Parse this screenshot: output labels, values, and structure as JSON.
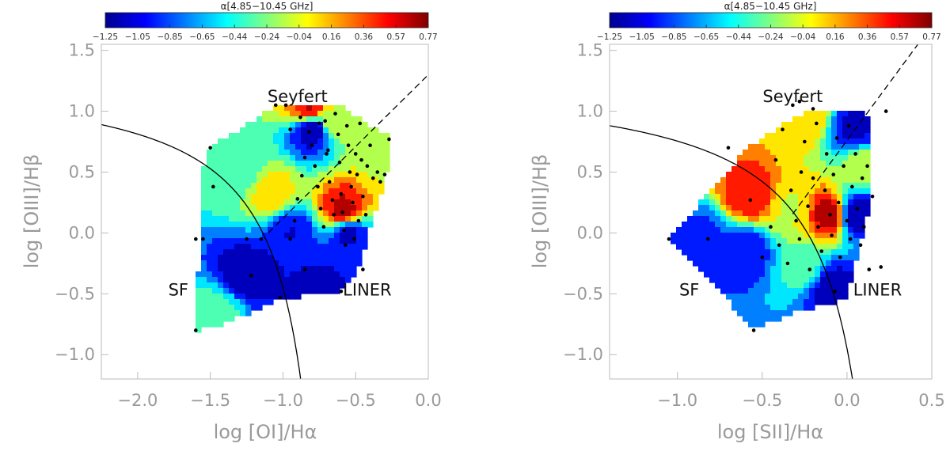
{
  "colorbar": {
    "title": "α[4.85−10.45 GHz]",
    "ticks": [
      "−1.25",
      "−1.05",
      "−0.85",
      "−0.65",
      "−0.44",
      "−0.24",
      "−0.04",
      "0.16",
      "0.36",
      "0.57",
      "0.77"
    ],
    "range": [
      -1.25,
      0.77
    ],
    "colormap": [
      "#00008f",
      "#0000ff",
      "#0080ff",
      "#00ffff",
      "#80ff80",
      "#ffff00",
      "#ff8000",
      "#ff0000",
      "#800000"
    ]
  },
  "chart_data": [
    {
      "type": "scatter",
      "title": "",
      "xlabel": "log [OI]/Hα",
      "ylabel": "log [OIII]/Hβ",
      "xlim": [
        -2.25,
        0.0
      ],
      "ylim": [
        -1.2,
        1.55
      ],
      "xticks": [
        -2.0,
        -1.5,
        -1.0,
        -0.5,
        0.0
      ],
      "xticklabels": [
        "−2.0",
        "−1.5",
        "−1.0",
        "−0.5",
        "0.0"
      ],
      "yticks": [
        1.5,
        1.0,
        0.5,
        0.0,
        -0.5,
        -1.0
      ],
      "yticklabels": [
        "1.5",
        "1.0",
        "0.5",
        "0.0",
        "−0.5",
        "−1.0"
      ],
      "regions": [
        {
          "label": "Seyfert",
          "x": -0.9,
          "y": 1.12
        },
        {
          "label": "SF",
          "x": -1.72,
          "y": -0.47
        },
        {
          "label": "LINER",
          "x": -0.42,
          "y": -0.47
        }
      ],
      "hulls": [
        [
          -1.6,
          -0.8
        ],
        [
          -1.55,
          0.55
        ],
        [
          -1.5,
          0.7
        ],
        [
          -1.05,
          1.05
        ],
        [
          -0.62,
          1.05
        ],
        [
          -0.25,
          0.78
        ],
        [
          -0.3,
          0.42
        ],
        [
          -0.5,
          -0.35
        ],
        [
          -0.6,
          -0.48
        ],
        [
          -1.05,
          -0.55
        ],
        [
          -1.4,
          -0.75
        ]
      ],
      "hot_spots": [
        {
          "x": -0.82,
          "y": 1.02,
          "v": 0.6
        },
        {
          "x": -0.58,
          "y": 0.18,
          "v": 0.65
        },
        {
          "x": -1.08,
          "y": 0.32,
          "v": 0.1
        },
        {
          "x": -0.65,
          "y": 0.92,
          "v": -0.05
        },
        {
          "x": -0.35,
          "y": 0.65,
          "v": -0.05
        },
        {
          "x": -1.3,
          "y": 0.5,
          "v": -0.4
        },
        {
          "x": -1.45,
          "y": -0.65,
          "v": -0.35
        }
      ],
      "cold_spots": [
        {
          "x": -0.8,
          "y": 0.85,
          "v": -1.25
        },
        {
          "x": -1.25,
          "y": -0.35,
          "v": -1.2
        },
        {
          "x": -0.55,
          "y": 0.0,
          "v": -1.1
        },
        {
          "x": -0.95,
          "y": 0.0,
          "v": -1.05
        },
        {
          "x": -0.75,
          "y": -0.45,
          "v": -1.1
        }
      ],
      "points": [
        [
          -1.6,
          -0.05
        ],
        [
          -1.55,
          -0.05
        ],
        [
          -1.6,
          -0.8
        ],
        [
          -1.5,
          0.7
        ],
        [
          -1.48,
          0.38
        ],
        [
          -1.25,
          -0.05
        ],
        [
          -1.22,
          -0.35
        ],
        [
          -1.05,
          1.05
        ],
        [
          -0.98,
          1.05
        ],
        [
          -1.02,
          -0.53
        ],
        [
          -0.95,
          -0.05
        ],
        [
          -0.92,
          0.1
        ],
        [
          -0.9,
          0.28
        ],
        [
          -0.87,
          0.47
        ],
        [
          -0.85,
          0.62
        ],
        [
          -0.82,
          0.83
        ],
        [
          -0.8,
          0.72
        ],
        [
          -0.78,
          0.55
        ],
        [
          -0.76,
          0.38
        ],
        [
          -0.74,
          0.2
        ],
        [
          -0.72,
          0.05
        ],
        [
          -0.71,
          0.92
        ],
        [
          -0.69,
          0.68
        ],
        [
          -0.68,
          0.42
        ],
        [
          -0.66,
          0.27
        ],
        [
          -0.65,
          0.15
        ],
        [
          -0.64,
          0.98
        ],
        [
          -0.62,
          0.81
        ],
        [
          -0.61,
          0.58
        ],
        [
          -0.6,
          0.32
        ],
        [
          -0.59,
          0.17
        ],
        [
          -0.58,
          0.02
        ],
        [
          -0.57,
          -0.1
        ],
        [
          -0.56,
          0.88
        ],
        [
          -0.55,
          0.72
        ],
        [
          -0.54,
          0.5
        ],
        [
          -0.53,
          0.38
        ],
        [
          -0.52,
          0.25
        ],
        [
          -0.51,
          -0.05
        ],
        [
          -0.5,
          0.65
        ],
        [
          -0.49,
          0.48
        ],
        [
          -0.48,
          0.1
        ],
        [
          -0.47,
          0.9
        ],
        [
          -0.46,
          0.6
        ],
        [
          -0.45,
          0.3
        ],
        [
          -0.43,
          0.15
        ],
        [
          -0.42,
          0.55
        ],
        [
          -0.4,
          0.72
        ],
        [
          -0.38,
          0.45
        ],
        [
          -0.35,
          0.5
        ],
        [
          -0.33,
          0.42
        ],
        [
          -0.3,
          0.48
        ],
        [
          -0.27,
          0.77
        ],
        [
          -0.45,
          -0.3
        ],
        [
          -0.6,
          -0.48
        ],
        [
          -0.85,
          -0.3
        ],
        [
          -0.7,
          0.65
        ],
        [
          -0.75,
          0.9
        ],
        [
          -0.95,
          0.85
        ],
        [
          -0.88,
          0.95
        ],
        [
          -1.15,
          -0.05
        ]
      ],
      "demarcation": {
        "sf_curve": "log([OIII]/Hβ) = 0.73/(log([OI]/Hα)+0.59)+1.33",
        "seyfert_liner_line": "log([OIII]/Hβ) = 1.18·log([OI]/Hα)+1.30"
      }
    },
    {
      "type": "scatter",
      "title": "",
      "xlabel": "log [SII]/Hα",
      "ylabel": "log [OIII]/Hβ",
      "xlim": [
        -1.4,
        0.5
      ],
      "ylim": [
        -1.2,
        1.55
      ],
      "xticks": [
        -1.0,
        -0.5,
        0.0,
        0.5
      ],
      "xticklabels": [
        "−1.0",
        "−0.5",
        "0.0",
        "0.5"
      ],
      "yticks": [
        1.5,
        1.0,
        0.5,
        0.0,
        -0.5,
        -1.0
      ],
      "yticklabels": [
        "1.5",
        "1.0",
        "0.5",
        "0.0",
        "−0.5",
        "−1.0"
      ],
      "regions": [
        {
          "label": "SF",
          "x": -0.93,
          "y": -0.47
        },
        {
          "label": "Seyfert",
          "x": -0.32,
          "y": 1.12
        },
        {
          "label": "LINER",
          "x": 0.18,
          "y": -0.47
        }
      ],
      "hulls": [
        [
          -1.05,
          -0.05
        ],
        [
          -0.57,
          0.72
        ],
        [
          -0.25,
          1.0
        ],
        [
          0.08,
          1.0
        ],
        [
          0.15,
          0.95
        ],
        [
          0.15,
          0.3
        ],
        [
          0.0,
          -0.55
        ],
        [
          -0.3,
          -0.65
        ],
        [
          -0.55,
          -0.78
        ]
      ],
      "hot_spots": [
        {
          "x": -0.57,
          "y": 0.3,
          "v": 0.55
        },
        {
          "x": -0.1,
          "y": 0.15,
          "v": 0.7
        },
        {
          "x": -0.25,
          "y": 0.95,
          "v": 0.15
        },
        {
          "x": -0.33,
          "y": 0.2,
          "v": -0.05
        },
        {
          "x": 0.1,
          "y": 0.55,
          "v": -0.1
        },
        {
          "x": -0.25,
          "y": -0.3,
          "v": -0.35
        }
      ],
      "cold_spots": [
        {
          "x": 0.05,
          "y": 0.15,
          "v": -1.25
        },
        {
          "x": -0.6,
          "y": -0.15,
          "v": -1.0
        },
        {
          "x": -0.1,
          "y": -0.45,
          "v": -1.2
        },
        {
          "x": -0.85,
          "y": -0.05,
          "v": -0.9
        },
        {
          "x": 0.05,
          "y": 0.85,
          "v": -1.1
        }
      ],
      "points": [
        [
          -1.05,
          -0.05
        ],
        [
          -0.82,
          -0.05
        ],
        [
          -0.7,
          0.7
        ],
        [
          -0.57,
          0.27
        ],
        [
          -0.55,
          -0.8
        ],
        [
          -0.5,
          -0.2
        ],
        [
          -0.45,
          0.05
        ],
        [
          -0.42,
          0.6
        ],
        [
          -0.4,
          -0.1
        ],
        [
          -0.38,
          0.85
        ],
        [
          -0.35,
          -0.25
        ],
        [
          -0.33,
          0.35
        ],
        [
          -0.32,
          1.05
        ],
        [
          -0.3,
          0.1
        ],
        [
          -0.28,
          -0.05
        ],
        [
          -0.27,
          0.5
        ],
        [
          -0.25,
          0.75
        ],
        [
          -0.23,
          0.22
        ],
        [
          -0.22,
          -0.3
        ],
        [
          -0.2,
          0.45
        ],
        [
          -0.18,
          0.9
        ],
        [
          -0.17,
          0.05
        ],
        [
          -0.15,
          -0.15
        ],
        [
          -0.13,
          0.35
        ],
        [
          -0.12,
          0.65
        ],
        [
          -0.1,
          0.15
        ],
        [
          -0.09,
          -0.02
        ],
        [
          -0.08,
          0.48
        ],
        [
          -0.06,
          0.78
        ],
        [
          -0.05,
          0.25
        ],
        [
          -0.04,
          -0.2
        ],
        [
          -0.02,
          0.55
        ],
        [
          0.0,
          0.1
        ],
        [
          0.01,
          0.88
        ],
        [
          0.02,
          -0.05
        ],
        [
          0.03,
          0.38
        ],
        [
          0.05,
          0.65
        ],
        [
          0.06,
          0.2
        ],
        [
          0.08,
          -0.1
        ],
        [
          0.09,
          0.45
        ],
        [
          0.1,
          0.05
        ],
        [
          0.12,
          0.55
        ],
        [
          0.13,
          -0.3
        ],
        [
          0.15,
          0.3
        ],
        [
          0.2,
          -0.28
        ],
        [
          0.23,
          1.0
        ],
        [
          -0.07,
          -0.48
        ],
        [
          -0.2,
          1.02
        ],
        [
          -0.28,
          1.08
        ]
      ],
      "demarcation": {
        "sf_curve": "log([OIII]/Hβ) = 0.72/(log([SII]/Hα)−0.32)+1.30",
        "seyfert_liner_line": "log([OIII]/Hβ) = 1.89·log([SII]/Hα)+0.76"
      }
    }
  ]
}
